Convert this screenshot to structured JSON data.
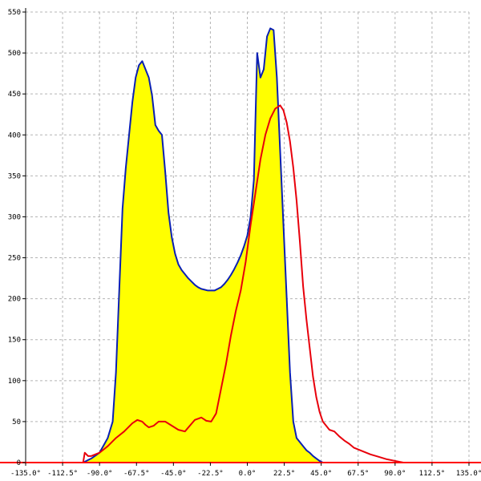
{
  "chart_data": {
    "type": "area",
    "title": "",
    "xlabel": "",
    "ylabel": "",
    "xlim": [
      -135,
      135
    ],
    "ylim": [
      0,
      550
    ],
    "grid": true,
    "x_ticks": [
      -135,
      -112.5,
      -90,
      -67.5,
      -45,
      -22.5,
      0,
      22.5,
      45,
      67.5,
      90,
      112.5,
      135
    ],
    "x_tick_labels": [
      "-135.0°",
      "-112.5°",
      "-90.0°",
      "-67.5°",
      "-45.0°",
      "-22.5°",
      "0.0°",
      "22.5°",
      "45.0°",
      "67.5°",
      "90.0°",
      "112.5°",
      "135.0°"
    ],
    "y_ticks": [
      0,
      50,
      100,
      150,
      200,
      250,
      300,
      350,
      400,
      450,
      500,
      550
    ],
    "y_tick_labels": [
      "0",
      "50",
      "100",
      "150",
      "200",
      "250",
      "300",
      "350",
      "400",
      "450",
      "500",
      "550"
    ],
    "series": [
      {
        "color": "#0a1fb4",
        "fill": "#ffff00",
        "x": [
          -100,
          -95,
          -90,
          -85,
          -82,
          -80,
          -78,
          -76,
          -74,
          -72,
          -70,
          -68,
          -66,
          -64,
          -62,
          -60,
          -58,
          -56,
          -54,
          -52,
          -50,
          -48,
          -46,
          -44,
          -42,
          -40,
          -38,
          -36,
          -34,
          -32,
          -30,
          -28,
          -26,
          -24,
          -22,
          -20,
          -18,
          -16,
          -14,
          -12,
          -10,
          -8,
          -6,
          -4,
          -2,
          0,
          2,
          4,
          6,
          8,
          10,
          12,
          14,
          16,
          18,
          20,
          22,
          24,
          26,
          28,
          30,
          32,
          34,
          36,
          38,
          40,
          42,
          44,
          46,
          48,
          50,
          52,
          54,
          56,
          58,
          60,
          62,
          64,
          66,
          68,
          70,
          72,
          74,
          76,
          78,
          80,
          82,
          84,
          86,
          88,
          90,
          92,
          94,
          96,
          98,
          100,
          101
        ],
        "y": [
          0,
          5,
          12,
          30,
          50,
          110,
          210,
          310,
          360,
          400,
          440,
          470,
          485,
          490,
          480,
          470,
          448,
          412,
          405,
          400,
          355,
          305,
          275,
          255,
          242,
          235,
          230,
          225,
          221,
          217,
          214,
          212,
          211,
          210,
          210,
          210,
          212,
          214,
          218,
          223,
          229,
          236,
          244,
          253,
          264,
          277,
          300,
          345,
          500,
          470,
          480,
          520,
          530,
          528,
          470,
          380,
          290,
          200,
          110,
          50,
          30,
          25,
          20,
          15,
          12,
          8,
          5,
          2,
          0,
          0,
          0,
          0,
          0,
          0,
          0,
          0,
          0,
          0,
          0,
          0,
          0,
          0,
          0,
          0,
          0,
          0,
          0,
          0,
          0,
          0,
          0,
          0,
          0,
          0,
          0,
          0,
          0
        ]
      },
      {
        "color": "#e8000b",
        "fill": "none",
        "x": [
          -100,
          -99,
          -97,
          -95,
          -90,
          -85,
          -80,
          -75,
          -70,
          -67,
          -64,
          -62,
          -60,
          -57,
          -54,
          -50,
          -46,
          -42,
          -38,
          -35,
          -32,
          -28,
          -25,
          -22,
          -19,
          -16,
          -13,
          -10,
          -7,
          -4,
          -1,
          2,
          5,
          8,
          11,
          14,
          17,
          20,
          22,
          24,
          26,
          28,
          30,
          32,
          34,
          36,
          38,
          40,
          42,
          44,
          46,
          48,
          50,
          53,
          56,
          59,
          62,
          65,
          70,
          75,
          80,
          85,
          90,
          95,
          100
        ],
        "y": [
          0,
          12,
          8,
          8,
          12,
          20,
          30,
          38,
          48,
          52,
          50,
          46,
          43,
          45,
          50,
          50,
          45,
          40,
          38,
          45,
          52,
          55,
          51,
          50,
          60,
          90,
          120,
          155,
          185,
          210,
          245,
          290,
          330,
          370,
          400,
          420,
          432,
          436,
          430,
          415,
          392,
          360,
          320,
          270,
          215,
          175,
          140,
          105,
          80,
          62,
          50,
          45,
          40,
          38,
          32,
          27,
          23,
          18,
          14,
          10,
          7,
          4,
          2,
          0,
          0
        ]
      }
    ]
  }
}
